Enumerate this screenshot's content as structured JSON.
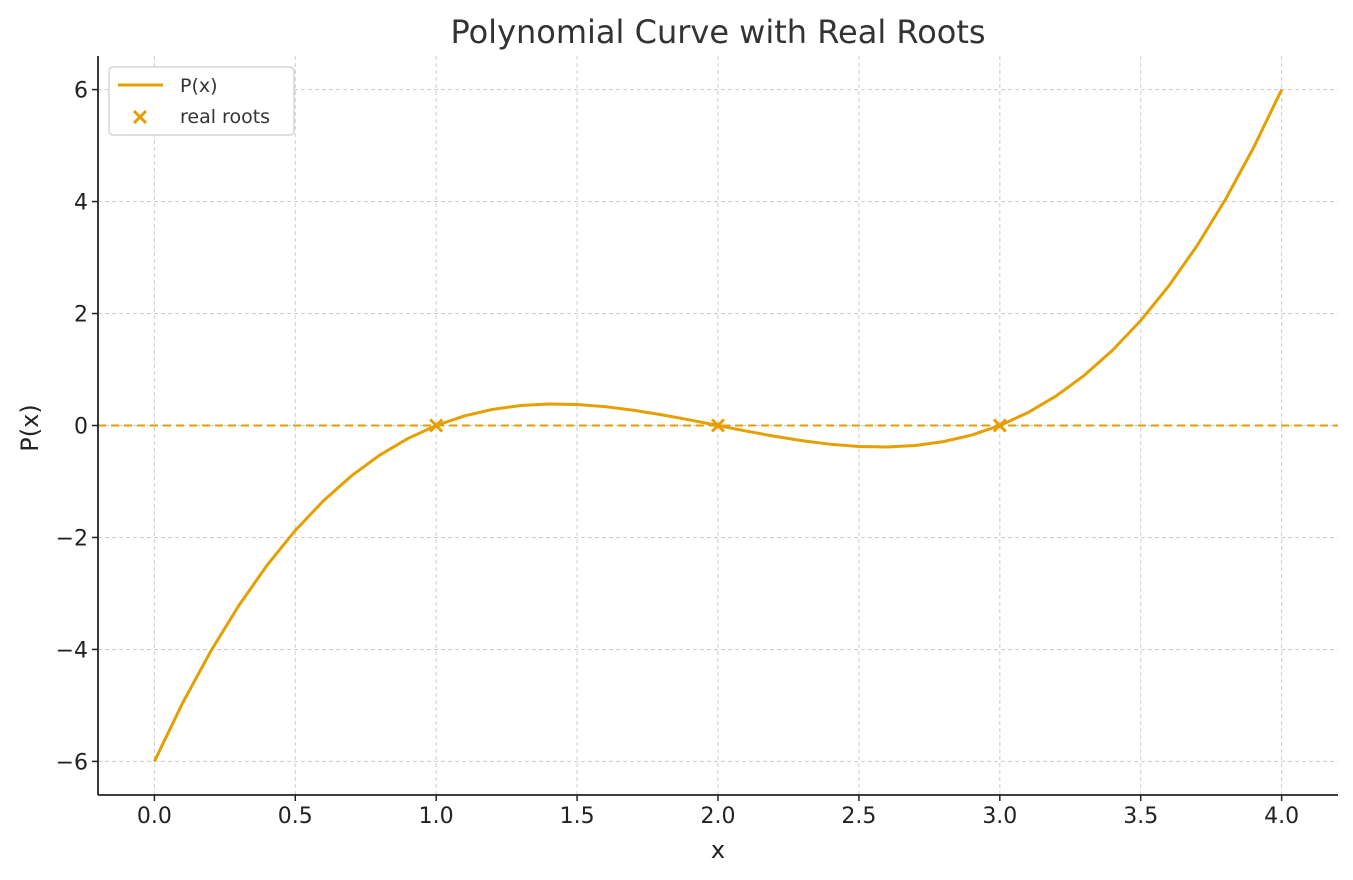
{
  "chart_data": {
    "type": "line",
    "title": "Polynomial Curve with Real Roots",
    "xlabel": "x",
    "ylabel": "P(x)",
    "xlim": [
      -0.2,
      4.2
    ],
    "ylim": [
      -6.6,
      6.6
    ],
    "xticks": [
      0.0,
      0.5,
      1.0,
      1.5,
      2.0,
      2.5,
      3.0,
      3.5,
      4.0
    ],
    "xtick_labels": [
      "0.0",
      "0.5",
      "1.0",
      "1.5",
      "2.0",
      "2.5",
      "3.0",
      "3.5",
      "4.0"
    ],
    "yticks": [
      -6,
      -4,
      -2,
      0,
      2,
      4,
      6
    ],
    "ytick_labels": [
      "−6",
      "−4",
      "−2",
      "0",
      "2",
      "4",
      "6"
    ],
    "grid": true,
    "legend_position": "top-left",
    "color": "#E69F00",
    "series": [
      {
        "name": "P(x)",
        "kind": "line",
        "x": [
          0.0,
          0.1,
          0.2,
          0.3,
          0.4,
          0.5,
          0.6,
          0.7,
          0.8,
          0.9,
          1.0,
          1.1,
          1.2,
          1.3,
          1.4,
          1.5,
          1.6,
          1.7,
          1.8,
          1.9,
          2.0,
          2.1,
          2.2,
          2.3,
          2.4,
          2.5,
          2.6,
          2.7,
          2.8,
          2.9,
          3.0,
          3.1,
          3.2,
          3.3,
          3.4,
          3.5,
          3.6,
          3.7,
          3.8,
          3.9,
          4.0
        ],
        "y": [
          -6.0,
          -4.959,
          -4.032,
          -3.213,
          -2.496,
          -1.875,
          -1.344,
          -0.897,
          -0.528,
          -0.231,
          0.0,
          0.171,
          0.288,
          0.357,
          0.384,
          0.375,
          0.336,
          0.273,
          0.192,
          0.099,
          0.0,
          -0.099,
          -0.192,
          -0.273,
          -0.336,
          -0.375,
          -0.384,
          -0.357,
          -0.288,
          -0.171,
          0.0,
          0.231,
          0.528,
          0.897,
          1.344,
          1.875,
          2.496,
          3.213,
          4.032,
          4.959,
          6.0
        ]
      },
      {
        "name": "real roots",
        "kind": "scatter",
        "marker": "x",
        "x": [
          1.0,
          2.0,
          3.0
        ],
        "y": [
          0,
          0,
          0
        ]
      }
    ],
    "reference_line": {
      "axis": "y",
      "value": 0,
      "style": "dashed"
    }
  }
}
